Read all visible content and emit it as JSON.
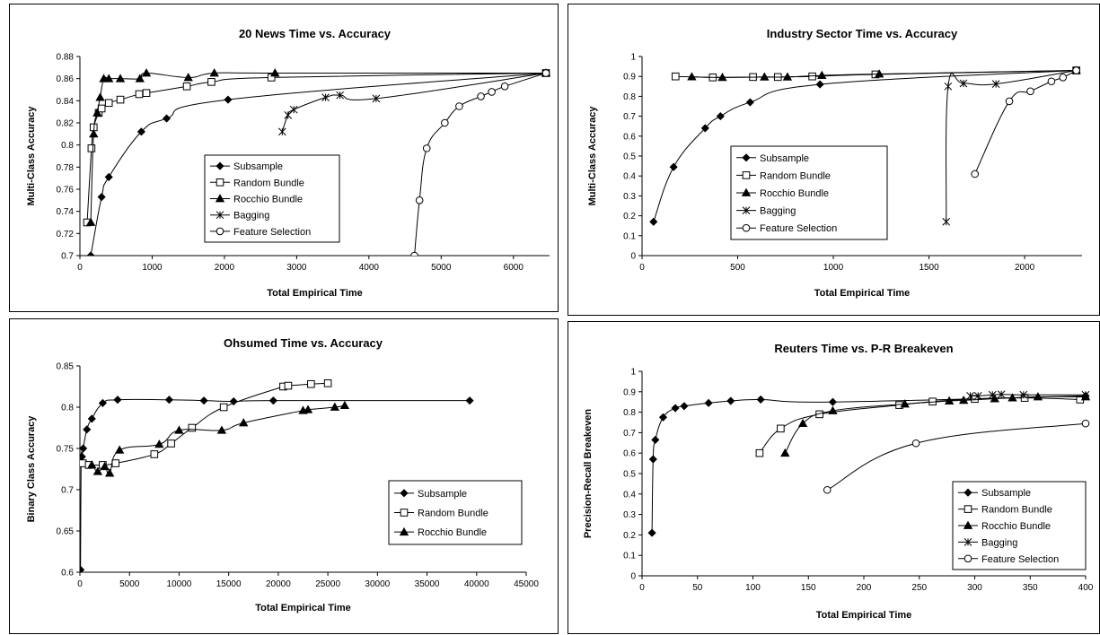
{
  "chart_data": [
    {
      "type": "line",
      "title": "20 News  Time vs. Accuracy",
      "xlabel": "Total Empirical Time",
      "ylabel": "Multi-Class Accuracy",
      "xlim": [
        0,
        6500
      ],
      "ylim": [
        0.7,
        0.88
      ],
      "xticks": [
        0,
        1000,
        2000,
        3000,
        4000,
        5000,
        6000
      ],
      "yticks": [
        0.7,
        0.72,
        0.74,
        0.76,
        0.78,
        0.8,
        0.82,
        0.84,
        0.86,
        0.88
      ],
      "xtick_labels": [
        "0",
        "1000",
        "2000",
        "3000",
        "4000",
        "5000",
        "6000"
      ],
      "ytick_labels": [
        "0.7",
        "0.72",
        "0.74",
        "0.76",
        "0.78",
        "0.8",
        "0.82",
        "0.84",
        "0.86",
        "0.88"
      ],
      "grid": false,
      "legend_position": "center",
      "series": [
        {
          "name": "Subsample",
          "marker": "diamond",
          "points": [
            [
              150,
              0.7
            ],
            [
              300,
              0.753
            ],
            [
              400,
              0.771
            ],
            [
              850,
              0.812
            ],
            [
              1200,
              0.824
            ],
            [
              2050,
              0.841
            ],
            [
              6450,
              0.865
            ]
          ]
        },
        {
          "name": "Random Bundle",
          "marker": "square",
          "points": [
            [
              100,
              0.73
            ],
            [
              160,
              0.797
            ],
            [
              190,
              0.816
            ],
            [
              260,
              0.829
            ],
            [
              300,
              0.833
            ],
            [
              400,
              0.838
            ],
            [
              560,
              0.841
            ],
            [
              820,
              0.846
            ],
            [
              920,
              0.847
            ],
            [
              1480,
              0.853
            ],
            [
              1820,
              0.857
            ],
            [
              2650,
              0.861
            ],
            [
              6450,
              0.865
            ]
          ]
        },
        {
          "name": "Rocchio Bundle",
          "marker": "triangle",
          "points": [
            [
              150,
              0.73
            ],
            [
              190,
              0.81
            ],
            [
              240,
              0.829
            ],
            [
              280,
              0.843
            ],
            [
              330,
              0.86
            ],
            [
              400,
              0.86
            ],
            [
              560,
              0.86
            ],
            [
              830,
              0.86
            ],
            [
              920,
              0.865
            ],
            [
              1500,
              0.861
            ],
            [
              1860,
              0.865
            ],
            [
              2700,
              0.865
            ],
            [
              6450,
              0.865
            ]
          ]
        },
        {
          "name": "Bagging",
          "marker": "asterisk",
          "points": [
            [
              2800,
              0.812
            ],
            [
              2880,
              0.827
            ],
            [
              2960,
              0.832
            ],
            [
              3400,
              0.843
            ],
            [
              3600,
              0.845
            ],
            [
              4100,
              0.842
            ],
            [
              6450,
              0.865
            ]
          ]
        },
        {
          "name": "Feature Selection",
          "marker": "circle",
          "points": [
            [
              4630,
              0.7
            ],
            [
              4700,
              0.75
            ],
            [
              4800,
              0.797
            ],
            [
              5050,
              0.82
            ],
            [
              5250,
              0.835
            ],
            [
              5550,
              0.844
            ],
            [
              5700,
              0.848
            ],
            [
              5880,
              0.853
            ],
            [
              6450,
              0.865
            ]
          ]
        }
      ]
    },
    {
      "type": "line",
      "title": "Industry Sector  Time vs. Accuracy",
      "xlabel": "Total Empirical Time",
      "ylabel": "Multi-Class Accuracy",
      "xlim": [
        0,
        2300
      ],
      "ylim": [
        0,
        1
      ],
      "xticks": [
        0,
        500,
        1000,
        1500,
        2000
      ],
      "yticks": [
        0,
        0.1,
        0.2,
        0.3,
        0.4,
        0.5,
        0.6,
        0.7,
        0.8,
        0.9,
        1
      ],
      "xtick_labels": [
        "0",
        "500",
        "1000",
        "1500",
        "2000"
      ],
      "ytick_labels": [
        "0",
        "0.1",
        "0.2",
        "0.3",
        "0.4",
        "0.5",
        "0.6",
        "0.7",
        "0.8",
        "0.9",
        "1"
      ],
      "grid": false,
      "legend_position": "center",
      "series": [
        {
          "name": "Subsample",
          "marker": "diamond",
          "points": [
            [
              60,
              0.17
            ],
            [
              165,
              0.445
            ],
            [
              330,
              0.64
            ],
            [
              410,
              0.7
            ],
            [
              565,
              0.77
            ],
            [
              930,
              0.86
            ],
            [
              2270,
              0.93
            ]
          ]
        },
        {
          "name": "Random Bundle",
          "marker": "square",
          "points": [
            [
              175,
              0.9
            ],
            [
              370,
              0.895
            ],
            [
              580,
              0.897
            ],
            [
              710,
              0.897
            ],
            [
              890,
              0.9
            ],
            [
              1220,
              0.91
            ],
            [
              2270,
              0.93
            ]
          ]
        },
        {
          "name": "Rocchio Bundle",
          "marker": "triangle",
          "points": [
            [
              260,
              0.898
            ],
            [
              420,
              0.895
            ],
            [
              640,
              0.897
            ],
            [
              760,
              0.897
            ],
            [
              940,
              0.905
            ],
            [
              1240,
              0.912
            ],
            [
              2270,
              0.93
            ]
          ]
        },
        {
          "name": "Bagging",
          "marker": "asterisk",
          "points": [
            [
              1590,
              0.17
            ],
            [
              1600,
              0.85
            ],
            [
              1680,
              0.865
            ],
            [
              1850,
              0.862
            ],
            [
              2270,
              0.93
            ]
          ]
        },
        {
          "name": "Feature Selection",
          "marker": "circle",
          "points": [
            [
              1740,
              0.41
            ],
            [
              1920,
              0.775
            ],
            [
              2030,
              0.825
            ],
            [
              2140,
              0.875
            ],
            [
              2200,
              0.895
            ],
            [
              2270,
              0.93
            ]
          ]
        }
      ]
    },
    {
      "type": "line",
      "title": "Ohsumed Time vs. Accuracy",
      "xlabel": "Total Empirical Time",
      "ylabel": "Binary Class Accuracy",
      "xlim": [
        0,
        45000
      ],
      "ylim": [
        0.6,
        0.85
      ],
      "xticks": [
        0,
        5000,
        10000,
        15000,
        20000,
        25000,
        30000,
        35000,
        40000,
        45000
      ],
      "yticks": [
        0.6,
        0.65,
        0.7,
        0.75,
        0.8,
        0.85
      ],
      "xtick_labels": [
        "0",
        "5000",
        "10000",
        "15000",
        "20000",
        "25000",
        "30000",
        "35000",
        "40000",
        "45000"
      ],
      "ytick_labels": [
        "0.6",
        "0.65",
        "0.7",
        "0.75",
        "0.8",
        "0.85"
      ],
      "grid": false,
      "legend_position": "right",
      "series": [
        {
          "name": "Subsample",
          "marker": "diamond",
          "points": [
            [
              60,
              0.603
            ],
            [
              120,
              0.732
            ],
            [
              200,
              0.74
            ],
            [
              330,
              0.75
            ],
            [
              700,
              0.773
            ],
            [
              1200,
              0.786
            ],
            [
              2300,
              0.805
            ],
            [
              3800,
              0.809
            ],
            [
              9000,
              0.809
            ],
            [
              12500,
              0.808
            ],
            [
              15500,
              0.807
            ],
            [
              19500,
              0.808
            ],
            [
              39300,
              0.808
            ]
          ]
        },
        {
          "name": "Random Bundle",
          "marker": "square",
          "points": [
            [
              300,
              0.732
            ],
            [
              900,
              0.73
            ],
            [
              2300,
              0.73
            ],
            [
              3600,
              0.732
            ],
            [
              7500,
              0.743
            ],
            [
              9200,
              0.756
            ],
            [
              11300,
              0.775
            ],
            [
              14500,
              0.8
            ],
            [
              20500,
              0.825
            ],
            [
              21000,
              0.826
            ],
            [
              23300,
              0.828
            ],
            [
              25000,
              0.829
            ]
          ]
        },
        {
          "name": "Rocchio Bundle",
          "marker": "triangle",
          "points": [
            [
              1200,
              0.73
            ],
            [
              1800,
              0.722
            ],
            [
              2500,
              0.728
            ],
            [
              3000,
              0.72
            ],
            [
              4000,
              0.748
            ],
            [
              8000,
              0.755
            ],
            [
              10000,
              0.772
            ],
            [
              14300,
              0.772
            ],
            [
              16500,
              0.781
            ],
            [
              22500,
              0.796
            ],
            [
              23000,
              0.797
            ],
            [
              25700,
              0.8
            ],
            [
              26700,
              0.802
            ]
          ]
        }
      ]
    },
    {
      "type": "line",
      "title": "Reuters Time vs. P-R Breakeven",
      "xlabel": "Total Empirical Time",
      "ylabel": "Precision-Recall Breakeven",
      "xlim": [
        0,
        400
      ],
      "ylim": [
        0,
        1
      ],
      "xticks": [
        0,
        50,
        100,
        150,
        200,
        250,
        300,
        350,
        400
      ],
      "yticks": [
        0,
        0.1,
        0.2,
        0.3,
        0.4,
        0.5,
        0.6,
        0.7,
        0.8,
        0.9,
        1
      ],
      "xtick_labels": [
        "0",
        "50",
        "100",
        "150",
        "200",
        "250",
        "300",
        "350",
        "400"
      ],
      "ytick_labels": [
        "0",
        "0.1",
        "0.2",
        "0.3",
        "0.4",
        "0.5",
        "0.6",
        "0.7",
        "0.8",
        "0.9",
        "1"
      ],
      "grid": false,
      "legend_position": "bottom-right",
      "series": [
        {
          "name": "Subsample",
          "marker": "diamond",
          "points": [
            [
              9,
              0.21
            ],
            [
              10,
              0.57
            ],
            [
              12,
              0.665
            ],
            [
              19,
              0.775
            ],
            [
              30,
              0.82
            ],
            [
              38,
              0.83
            ],
            [
              60,
              0.845
            ],
            [
              80,
              0.855
            ],
            [
              107,
              0.862
            ],
            [
              172,
              0.85
            ],
            [
              400,
              0.88
            ]
          ]
        },
        {
          "name": "Random Bundle",
          "marker": "square",
          "points": [
            [
              106,
              0.6
            ],
            [
              125,
              0.72
            ],
            [
              160,
              0.79
            ],
            [
              232,
              0.835
            ],
            [
              262,
              0.852
            ],
            [
              300,
              0.865
            ],
            [
              345,
              0.87
            ],
            [
              395,
              0.862
            ]
          ]
        },
        {
          "name": "Rocchio Bundle",
          "marker": "triangle",
          "points": [
            [
              129,
              0.6
            ],
            [
              145,
              0.745
            ],
            [
              172,
              0.807
            ],
            [
              237,
              0.84
            ],
            [
              277,
              0.855
            ],
            [
              290,
              0.858
            ],
            [
              318,
              0.866
            ],
            [
              334,
              0.87
            ],
            [
              357,
              0.875
            ],
            [
              400,
              0.875
            ]
          ]
        },
        {
          "name": "Bagging",
          "marker": "asterisk",
          "points": [
            [
              296,
              0.88
            ],
            [
              303,
              0.88
            ],
            [
              316,
              0.885
            ],
            [
              324,
              0.887
            ],
            [
              344,
              0.885
            ],
            [
              400,
              0.885
            ]
          ]
        },
        {
          "name": "Feature Selection",
          "marker": "circle",
          "points": [
            [
              167,
              0.42
            ],
            [
              247,
              0.648
            ],
            [
              400,
              0.745
            ]
          ]
        }
      ]
    }
  ]
}
